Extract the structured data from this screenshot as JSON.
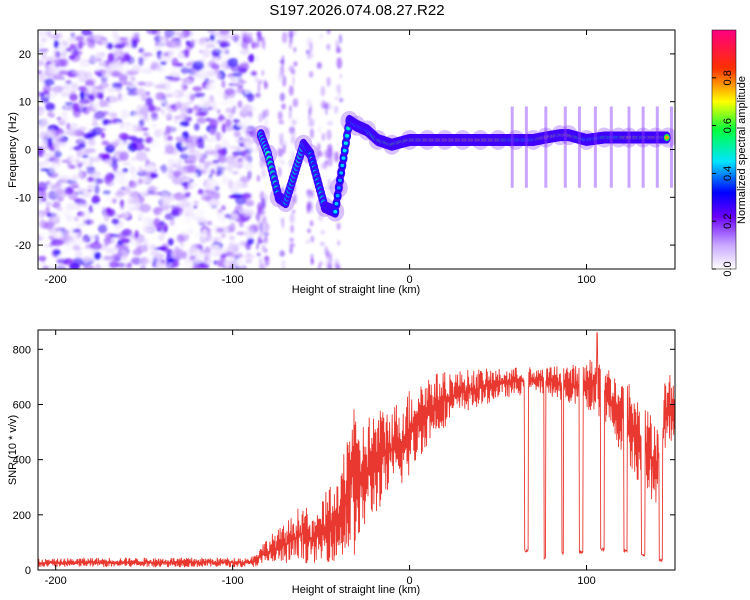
{
  "title": "S197.2026.074.08.27.R22",
  "colors": {
    "snr_line": "#e8382f",
    "spectrogram_noise": "#7a2fe0",
    "spectrogram_peak": "#e4261a",
    "frame": "#000000"
  },
  "chart_data": [
    {
      "type": "heatmap",
      "xlabel": "Height of straight line (km)",
      "ylabel": "Frequency (Hz)",
      "xlim": [
        -210,
        150
      ],
      "ylim": [
        -25,
        25
      ],
      "xticks": [
        -200,
        -100,
        0,
        100
      ],
      "yticks": [
        -20,
        -10,
        0,
        10,
        20
      ],
      "colorbar": {
        "label": "Normalized spectral amplitude",
        "range": [
          0,
          1
        ],
        "ticks": [
          0.0,
          0.2,
          0.4,
          0.6,
          0.8
        ],
        "stops": [
          "#ffffff",
          "#6a00ff",
          "#0000ff",
          "#00e5ff",
          "#00ff40",
          "#ffff00",
          "#ff3000",
          "#ff0080"
        ]
      },
      "noise_region_x": [
        -210,
        -88
      ],
      "trace_points": [
        {
          "x": -84,
          "f": 3,
          "amp": 0.55
        },
        {
          "x": -80,
          "f": -1,
          "amp": 0.6
        },
        {
          "x": -74,
          "f": -10,
          "amp": 0.45
        },
        {
          "x": -70,
          "f": -11,
          "amp": 0.5
        },
        {
          "x": -60,
          "f": 1,
          "amp": 0.55
        },
        {
          "x": -56,
          "f": -1,
          "amp": 0.45
        },
        {
          "x": -48,
          "f": -12,
          "amp": 0.5
        },
        {
          "x": -42,
          "f": -13,
          "amp": 0.45
        },
        {
          "x": -40,
          "f": -8,
          "amp": 0.4
        },
        {
          "x": -34,
          "f": 6,
          "amp": 0.5
        },
        {
          "x": -30,
          "f": 5,
          "amp": 0.55
        },
        {
          "x": -24,
          "f": 4,
          "amp": 0.5
        },
        {
          "x": -18,
          "f": 2,
          "amp": 0.8
        },
        {
          "x": -10,
          "f": 1,
          "amp": 0.8
        },
        {
          "x": 0,
          "f": 2,
          "amp": 0.85
        },
        {
          "x": 10,
          "f": 2,
          "amp": 0.9
        },
        {
          "x": 20,
          "f": 2,
          "amp": 0.95
        },
        {
          "x": 30,
          "f": 2,
          "amp": 0.95
        },
        {
          "x": 40,
          "f": 2,
          "amp": 0.95
        },
        {
          "x": 50,
          "f": 2,
          "amp": 0.9
        },
        {
          "x": 60,
          "f": 2,
          "amp": 0.7
        },
        {
          "x": 70,
          "f": 2,
          "amp": 0.7
        },
        {
          "x": 77,
          "f": 2.5,
          "amp": 0.95
        },
        {
          "x": 85,
          "f": 3,
          "amp": 0.85
        },
        {
          "x": 90,
          "f": 3,
          "amp": 0.95
        },
        {
          "x": 100,
          "f": 2,
          "amp": 0.65
        },
        {
          "x": 110,
          "f": 2.5,
          "amp": 0.75
        },
        {
          "x": 118,
          "f": 2.5,
          "amp": 0.7
        },
        {
          "x": 124,
          "f": 2.5,
          "amp": 0.95
        },
        {
          "x": 132,
          "f": 2.5,
          "amp": 0.8
        },
        {
          "x": 139,
          "f": 2.5,
          "amp": 0.95
        },
        {
          "x": 146,
          "f": 2.5,
          "amp": 0.75
        }
      ]
    },
    {
      "type": "line",
      "xlabel": "Height of straight line (km)",
      "ylabel": "SNR (10 * v/v)",
      "xlim": [
        -210,
        150
      ],
      "ylim": [
        0,
        870
      ],
      "xticks": [
        -200,
        -100,
        0,
        100
      ],
      "yticks": [
        0,
        200,
        400,
        600,
        800
      ],
      "series": [
        {
          "name": "SNR",
          "color": "#e8382f",
          "envelope": {
            "x": [
              -210,
              -180,
              -150,
              -120,
              -95,
              -90,
              -80,
              -70,
              -60,
              -55,
              -50,
              -45,
              -40,
              -35,
              -32,
              -30,
              -25,
              -20,
              -15,
              -10,
              -5,
              0,
              5,
              10,
              20,
              30,
              40,
              50,
              60,
              70,
              80,
              90,
              100,
              105,
              110,
              115,
              120,
              125,
              130,
              135,
              140,
              145,
              150
            ],
            "low": [
              10,
              10,
              10,
              10,
              10,
              10,
              15,
              20,
              25,
              25,
              25,
              30,
              30,
              40,
              40,
              60,
              150,
              190,
              240,
              280,
              300,
              330,
              400,
              450,
              520,
              570,
              590,
              620,
              630,
              640,
              630,
              600,
              580,
              560,
              520,
              480,
              420,
              370,
              300,
              260,
              220,
              420,
              500
            ],
            "high": [
              40,
              45,
              45,
              45,
              45,
              45,
              120,
              170,
              250,
              180,
              240,
              320,
              300,
              560,
              670,
              500,
              560,
              580,
              590,
              600,
              620,
              660,
              690,
              710,
              720,
              725,
              730,
              730,
              735,
              740,
              740,
              745,
              750,
              800,
              760,
              720,
              700,
              680,
              620,
              580,
              560,
              720,
              700
            ]
          },
          "dropouts": [
            {
              "x_start": 65,
              "x_end": 67,
              "value": 65
            },
            {
              "x_start": 76,
              "x_end": 77,
              "value": 40
            },
            {
              "x_start": 86,
              "x_end": 87,
              "value": 55
            },
            {
              "x_start": 96,
              "x_end": 98,
              "value": 60
            },
            {
              "x_start": 108,
              "x_end": 110,
              "value": 70
            },
            {
              "x_start": 121,
              "x_end": 123,
              "value": 65
            },
            {
              "x_start": 131,
              "x_end": 133,
              "value": 50
            },
            {
              "x_start": 141,
              "x_end": 143,
              "value": 30
            }
          ],
          "peak": {
            "x": 106,
            "y": 860
          }
        }
      ]
    }
  ]
}
